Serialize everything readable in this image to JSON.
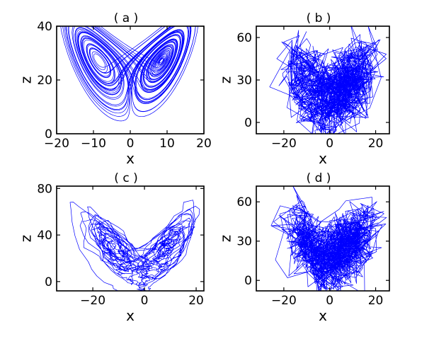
{
  "chart_data": [
    {
      "type": "line",
      "title": "( a )",
      "xlabel": "x",
      "ylabel": "z",
      "xlim": [
        -20,
        20
      ],
      "ylim": [
        0,
        40
      ],
      "xticks": [
        -20,
        -10,
        0,
        10,
        20
      ],
      "yticks": [
        0,
        20,
        40
      ],
      "xtick_labels": [
        "−20",
        "−10",
        "0",
        "10",
        "20"
      ],
      "ytick_labels": [
        "0",
        "20",
        "40"
      ],
      "series": [
        {
          "color": "#0000ff",
          "generator": "lorenz",
          "sigma": 10,
          "rho": 28,
          "beta": 2.667,
          "noise": 0,
          "x": [
            -15.0,
            -12.0,
            -9.0,
            -6.0,
            -3.0,
            0.0,
            3.0,
            6.0,
            9.0,
            12.0,
            15.0
          ],
          "z": [
            37,
            35,
            30,
            26,
            17,
            5,
            17,
            26,
            30,
            35,
            37
          ]
        }
      ]
    },
    {
      "type": "line",
      "title": "( b )",
      "xlabel": "x",
      "ylabel": "z",
      "xlim": [
        -32,
        26
      ],
      "ylim": [
        -8,
        68
      ],
      "xticks": [
        -20,
        0,
        20
      ],
      "yticks": [
        0,
        30,
        60
      ],
      "xtick_labels": [
        "−20",
        "0",
        "20"
      ],
      "ytick_labels": [
        "0",
        "30",
        "60"
      ],
      "series": [
        {
          "color": "#0000ff",
          "generator": "lorenz-noisy",
          "sigma": 10,
          "rho": 28,
          "beta": 2.667,
          "noise": 1,
          "x": [
            -28,
            -20,
            -10,
            0,
            10,
            20,
            25
          ],
          "z": [
            60,
            45,
            30,
            20,
            30,
            45,
            50
          ]
        }
      ]
    },
    {
      "type": "line",
      "title": "( c )",
      "xlabel": "x",
      "ylabel": "z",
      "xlim": [
        -34,
        23
      ],
      "ylim": [
        -8,
        82
      ],
      "xticks": [
        -20,
        0,
        20
      ],
      "yticks": [
        0,
        40,
        80
      ],
      "xtick_labels": [
        "−20",
        "0",
        "20"
      ],
      "ytick_labels": [
        "0",
        "40",
        "80"
      ],
      "series": [
        {
          "color": "#0000ff",
          "generator": "lorenz-filtered",
          "sigma": 10,
          "rho": 28,
          "beta": 2.667,
          "noise": 0.3,
          "x": [
            -32,
            -20,
            -10,
            0,
            10,
            18
          ],
          "z": [
            76,
            50,
            25,
            5,
            25,
            45
          ]
        }
      ]
    },
    {
      "type": "line",
      "title": "( d )",
      "xlabel": "x",
      "ylabel": "z",
      "xlim": [
        -32,
        26
      ],
      "ylim": [
        -8,
        72
      ],
      "xticks": [
        -20,
        0,
        20
      ],
      "yticks": [
        0,
        30,
        60
      ],
      "xtick_labels": [
        "−20",
        "0",
        "20"
      ],
      "ytick_labels": [
        "0",
        "30",
        "60"
      ],
      "series": [
        {
          "color": "#0000ff",
          "generator": "lorenz-noisy",
          "sigma": 10,
          "rho": 28,
          "beta": 2.667,
          "noise": 1,
          "x": [
            -28,
            -20,
            -10,
            0,
            10,
            20,
            25
          ],
          "z": [
            62,
            45,
            30,
            20,
            30,
            45,
            55
          ]
        }
      ]
    }
  ]
}
